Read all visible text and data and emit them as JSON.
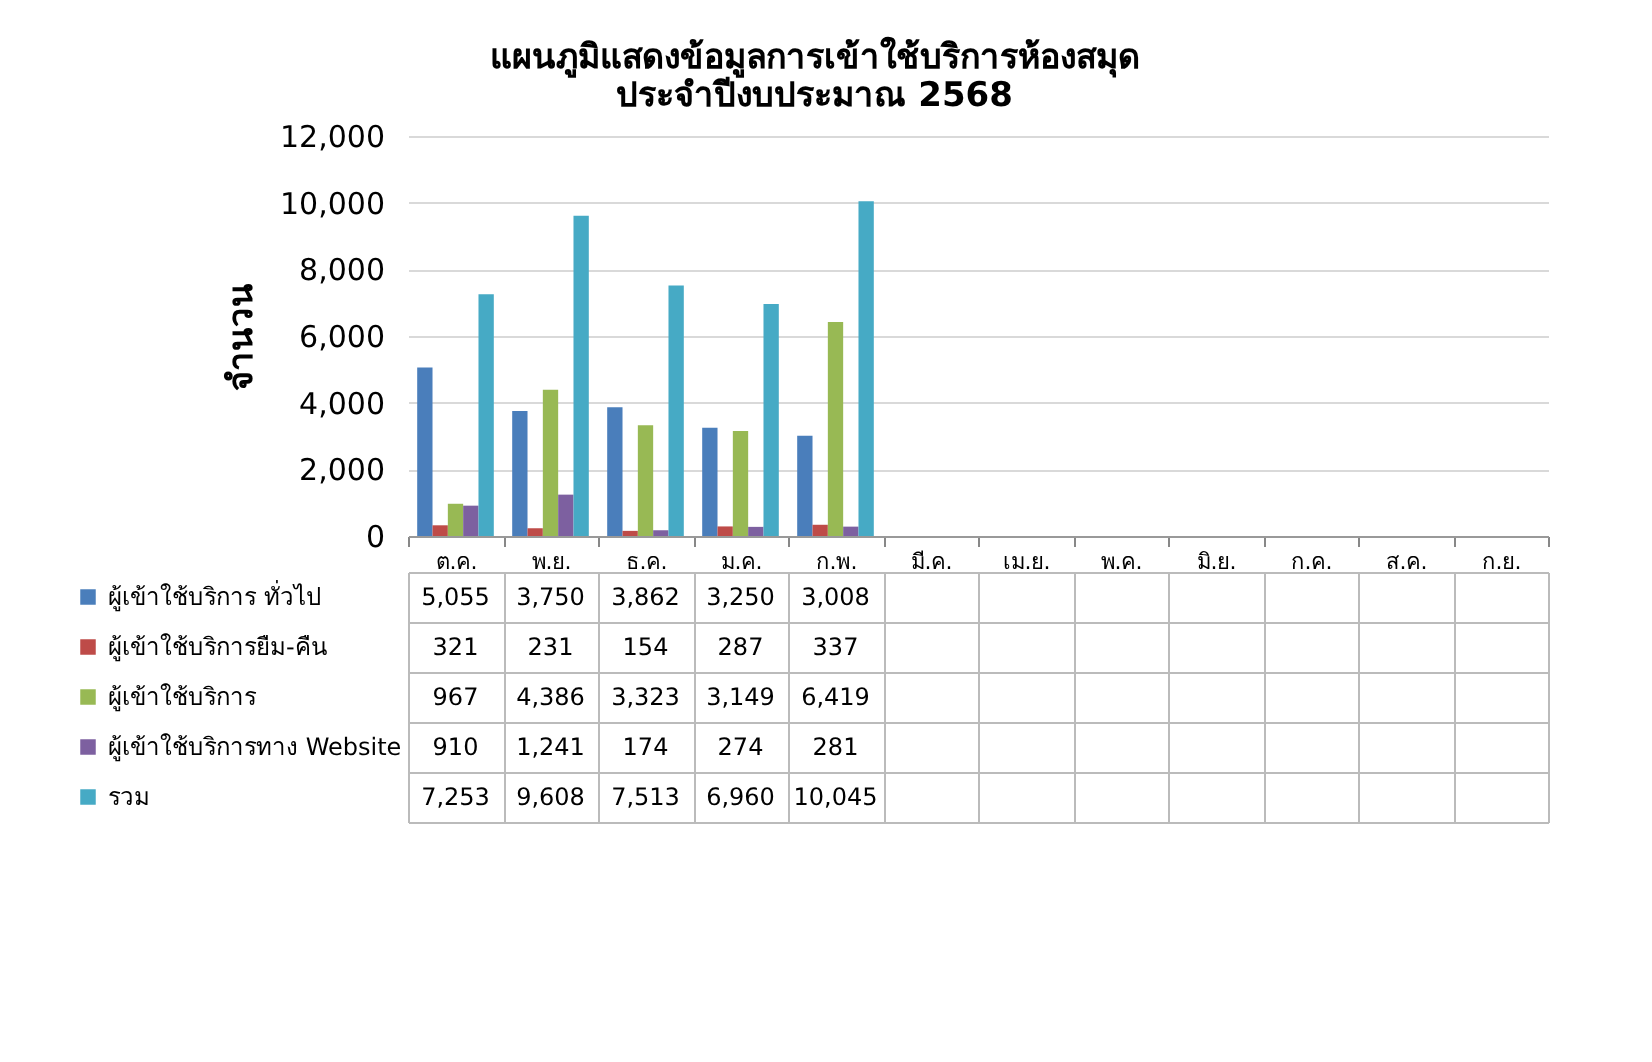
{
  "chart_data": {
    "type": "bar",
    "title": "แผนภูมิแสดงข้อมูลการเข้าใช้บริการห้องสมุด\nประจำปีงบประมาณ 2568",
    "ylabel": "จำนวน",
    "categories": [
      "ต.ค.",
      "พ.ย.",
      "ธ.ค.",
      "ม.ค.",
      "ก.พ.",
      "มี.ค.",
      "เม.ย.",
      "พ.ค.",
      "มิ.ย.",
      "ก.ค.",
      "ส.ค.",
      "ก.ย."
    ],
    "series": [
      {
        "name": "ผู้เข้าใช้บริการ ทั่วไป",
        "color": "#4a7ebb",
        "values": [
          5055,
          3750,
          3862,
          3250,
          3008,
          null,
          null,
          null,
          null,
          null,
          null,
          null
        ],
        "value_labels": [
          "5,055",
          "3,750",
          "3,862",
          "3,250",
          "3,008",
          null,
          null,
          null,
          null,
          null,
          null,
          null
        ]
      },
      {
        "name": "ผู้เข้าใช้บริการยืม-คืน",
        "color": "#be4b48",
        "values": [
          321,
          231,
          154,
          287,
          337,
          null,
          null,
          null,
          null,
          null,
          null,
          null
        ],
        "value_labels": [
          "321",
          "231",
          "154",
          "287",
          "337",
          null,
          null,
          null,
          null,
          null,
          null,
          null
        ]
      },
      {
        "name": "ผู้เข้าใช้บริการ",
        "color": "#98b954",
        "values": [
          967,
          4386,
          3323,
          3149,
          6419,
          null,
          null,
          null,
          null,
          null,
          null,
          null
        ],
        "value_labels": [
          "967",
          "4,386",
          "3,323",
          "3,149",
          "6,419",
          null,
          null,
          null,
          null,
          null,
          null,
          null
        ]
      },
      {
        "name": "ผู้เข้าใช้บริการทาง Website",
        "color": "#7d60a0",
        "values": [
          910,
          1241,
          174,
          274,
          281,
          null,
          null,
          null,
          null,
          null,
          null,
          null
        ],
        "value_labels": [
          "910",
          "1,241",
          "174",
          "274",
          "281",
          null,
          null,
          null,
          null,
          null,
          null,
          null
        ]
      },
      {
        "name": "รวม",
        "color": "#46aac5",
        "values": [
          7253,
          9608,
          7513,
          6960,
          10045,
          null,
          null,
          null,
          null,
          null,
          null,
          null
        ],
        "value_labels": [
          "7,253",
          "9,608",
          "7,513",
          "6,960",
          "10,045",
          null,
          null,
          null,
          null,
          null,
          null,
          null
        ]
      }
    ],
    "ylim": [
      0,
      12000
    ],
    "yticks": [
      0,
      {
        "value": 2000,
        "label": "2,000"
      },
      {
        "value": 4000,
        "label": "4,000"
      },
      {
        "value": 6000,
        "label": "6,000"
      },
      {
        "value": 8000,
        "label": "8,000"
      },
      {
        "value": 10000,
        "label": "10,000"
      },
      {
        "value": 12000,
        "label": "12,000"
      }
    ],
    "grid": "y",
    "legend": "bottom"
  }
}
